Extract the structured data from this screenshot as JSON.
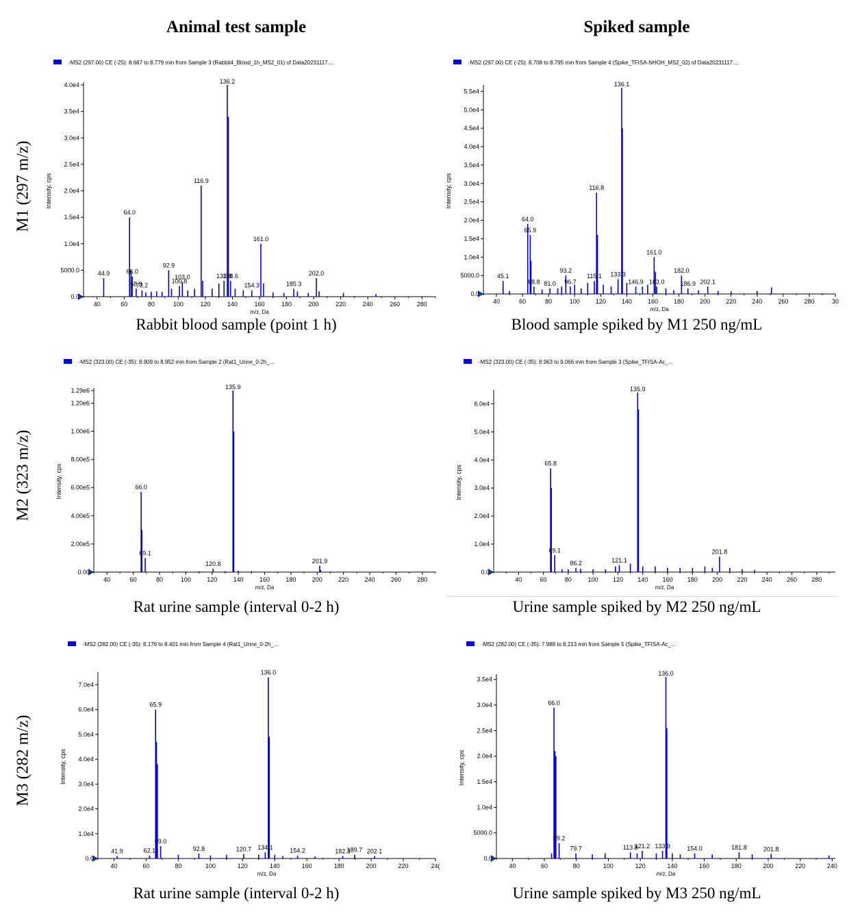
{
  "column_headers": [
    "Animal test sample",
    "Spiked sample"
  ],
  "row_headers": [
    "M1 (297 m/z)",
    "M2 (323 m/z)",
    "M3 (282 m/z)"
  ],
  "colors": {
    "spectrum": "#0000e0",
    "axis": "#000000",
    "background": "#ffffff"
  },
  "chart_data": [
    {
      "type": "bar",
      "legend": "-MS2 (297.00) CE (-25): 8.687 to 8.779 min from Sample 3 (Rabbit4_Blood_1h_MS2_01) of Data20231117....",
      "caption": "Rabbit blood sample (point 1 h)",
      "xlabel": "m/z, Da",
      "ylabel": "Intensity, cps",
      "xlim": [
        30,
        290
      ],
      "ylim": [
        0,
        40000
      ],
      "xticks": [
        40,
        60,
        80,
        100,
        120,
        140,
        160,
        180,
        200,
        220,
        240,
        260,
        280
      ],
      "yticks": [
        {
          "v": 0,
          "label": "0.0"
        },
        {
          "v": 5000,
          "label": "5000.0"
        },
        {
          "v": 10000,
          "label": "1.0e4"
        },
        {
          "v": 15000,
          "label": "1.5e4"
        },
        {
          "v": 20000,
          "label": "2.0e4"
        },
        {
          "v": 25000,
          "label": "2.5e4"
        },
        {
          "v": 30000,
          "label": "3.0e4"
        },
        {
          "v": 35000,
          "label": "3.5e4"
        },
        {
          "v": 40000,
          "label": "4.0e4"
        }
      ],
      "peaks": [
        [
          44.9,
          3500
        ],
        [
          64.0,
          15000
        ],
        [
          65.1,
          5000
        ],
        [
          66.0,
          3800
        ],
        [
          68.9,
          1500
        ],
        [
          73.2,
          1200
        ],
        [
          76,
          800
        ],
        [
          80,
          900
        ],
        [
          84,
          1000
        ],
        [
          88,
          900
        ],
        [
          92.9,
          5000
        ],
        [
          95,
          1500
        ],
        [
          100.8,
          2000
        ],
        [
          103.0,
          2800
        ],
        [
          107,
          1200
        ],
        [
          112,
          1500
        ],
        [
          116.9,
          21000
        ],
        [
          118,
          3000
        ],
        [
          125,
          1500
        ],
        [
          130,
          2500
        ],
        [
          133.8,
          3000
        ],
        [
          136.2,
          40000
        ],
        [
          137,
          34000
        ],
        [
          138.6,
          3000
        ],
        [
          142,
          1500
        ],
        [
          148,
          1200
        ],
        [
          154.3,
          1200
        ],
        [
          161.0,
          10000
        ],
        [
          163,
          2500
        ],
        [
          170,
          800
        ],
        [
          178,
          700
        ],
        [
          185.3,
          1500
        ],
        [
          188,
          1000
        ],
        [
          196,
          700
        ],
        [
          202.0,
          3500
        ],
        [
          204,
          1000
        ],
        [
          222,
          700
        ],
        [
          246,
          500
        ]
      ],
      "labels": [
        [
          44.9,
          "44.9"
        ],
        [
          64.0,
          "64.0"
        ],
        [
          66.0,
          "66.0"
        ],
        [
          68.9,
          "68.9"
        ],
        [
          73.2,
          "73.2"
        ],
        [
          92.9,
          "92.9"
        ],
        [
          100.8,
          "100.8"
        ],
        [
          103.0,
          "103.0"
        ],
        [
          116.9,
          "116.9"
        ],
        [
          133.8,
          "133.8"
        ],
        [
          136.2,
          "136.2"
        ],
        [
          138.6,
          "138.6"
        ],
        [
          154.3,
          "154.3"
        ],
        [
          161.0,
          "161.0"
        ],
        [
          185.3,
          "185.3"
        ],
        [
          202.0,
          "202.0"
        ]
      ]
    },
    {
      "type": "bar",
      "legend": "-MS2 (297.00) CE (-25): 8.708 to 8.795 min from Sample 4 (Spike_TFISA-NHOH_MS2_02) of Data20231117....",
      "caption": "Blood sample spiked by M1 250 ng/mL",
      "xlabel": "m/z, Da",
      "ylabel": "Intensity, cps",
      "xlim": [
        30,
        300
      ],
      "ylim": [
        0,
        56000
      ],
      "xticks": [
        40,
        60,
        80,
        100,
        120,
        140,
        160,
        180,
        200,
        220,
        240,
        260,
        280,
        300
      ],
      "yticks": [
        {
          "v": 0,
          "label": "0.0"
        },
        {
          "v": 5000,
          "label": "5000.0"
        },
        {
          "v": 10000,
          "label": "1.0e4"
        },
        {
          "v": 15000,
          "label": "1.5e4"
        },
        {
          "v": 20000,
          "label": "2.0e4"
        },
        {
          "v": 25000,
          "label": "2.5e4"
        },
        {
          "v": 30000,
          "label": "3.0e4"
        },
        {
          "v": 35000,
          "label": "3.5e4"
        },
        {
          "v": 40000,
          "label": "4.0e4"
        },
        {
          "v": 45000,
          "label": "4.5e4"
        },
        {
          "v": 50000,
          "label": "5.0e4"
        },
        {
          "v": 55000,
          "label": "5.5e4"
        }
      ],
      "peaks": [
        [
          45.1,
          3500
        ],
        [
          50,
          800
        ],
        [
          64.0,
          19000
        ],
        [
          65.9,
          16000
        ],
        [
          66.5,
          9000
        ],
        [
          68.8,
          2000
        ],
        [
          75,
          1200
        ],
        [
          81.0,
          1500
        ],
        [
          87,
          1500
        ],
        [
          90,
          2000
        ],
        [
          93.2,
          5000
        ],
        [
          96.7,
          2000
        ],
        [
          100,
          2500
        ],
        [
          105,
          1500
        ],
        [
          110,
          3000
        ],
        [
          115.1,
          3500
        ],
        [
          116.8,
          27500
        ],
        [
          117.5,
          16000
        ],
        [
          122,
          2500
        ],
        [
          128,
          2000
        ],
        [
          133.3,
          4000
        ],
        [
          136.1,
          56000
        ],
        [
          136.6,
          45000
        ],
        [
          140,
          3000
        ],
        [
          146.9,
          2000
        ],
        [
          152,
          2000
        ],
        [
          156,
          2500
        ],
        [
          161.0,
          10000
        ],
        [
          162,
          6000
        ],
        [
          163.0,
          2000
        ],
        [
          170,
          1500
        ],
        [
          176,
          1000
        ],
        [
          182.0,
          5000
        ],
        [
          186.9,
          1500
        ],
        [
          195,
          1000
        ],
        [
          202.1,
          2000
        ],
        [
          210,
          800
        ],
        [
          220,
          700
        ],
        [
          240,
          800
        ],
        [
          251,
          1800
        ]
      ],
      "labels": [
        [
          45.1,
          "45.1"
        ],
        [
          64.0,
          "64.0"
        ],
        [
          65.9,
          "65.9"
        ],
        [
          68.8,
          "68.8"
        ],
        [
          81.0,
          "81.0"
        ],
        [
          93.2,
          "93.2"
        ],
        [
          96.7,
          "96.7"
        ],
        [
          115.1,
          "115.1"
        ],
        [
          116.8,
          "116.8"
        ],
        [
          133.3,
          "133.3"
        ],
        [
          136.1,
          "136.1"
        ],
        [
          146.9,
          "146.9"
        ],
        [
          161.0,
          "161.0"
        ],
        [
          163.0,
          "163.0"
        ],
        [
          182.0,
          "182.0"
        ],
        [
          186.9,
          "186.9"
        ],
        [
          202.1,
          "202.1"
        ]
      ],
      "xtick_labels_override": {
        "300": "30"
      }
    },
    {
      "type": "bar",
      "legend": "-MS2 (323.00) CE (-35): 8.909 to 8.952 min from Sample 2 (Rat1_Urine_0-2h_...",
      "caption": "Rat urine sample (interval 0-2 h)",
      "xlabel": "m/z, Da",
      "ylabel": "Intensity, cps",
      "xlim": [
        30,
        290
      ],
      "ylim": [
        0,
        1290000
      ],
      "xticks": [
        40,
        60,
        80,
        100,
        120,
        140,
        160,
        180,
        200,
        220,
        240,
        260,
        280
      ],
      "yticks": [
        {
          "v": 0,
          "label": "0.00"
        },
        {
          "v": 200000,
          "label": "2.00e5"
        },
        {
          "v": 400000,
          "label": "4.00e5"
        },
        {
          "v": 600000,
          "label": "6.00e5"
        },
        {
          "v": 800000,
          "label": "8.00e5"
        },
        {
          "v": 1000000,
          "label": "1.00e6"
        },
        {
          "v": 1200000,
          "label": "1.20e6"
        },
        {
          "v": 1290000,
          "label": "1.29e6"
        }
      ],
      "peaks": [
        [
          66.0,
          570000
        ],
        [
          66.6,
          300000
        ],
        [
          69.1,
          100000
        ],
        [
          100,
          4000
        ],
        [
          110,
          5000
        ],
        [
          120.8,
          25000
        ],
        [
          130,
          6000
        ],
        [
          135.9,
          1290000
        ],
        [
          136.5,
          1000000
        ],
        [
          140,
          10000
        ],
        [
          150,
          6000
        ],
        [
          201.9,
          45000
        ],
        [
          202.5,
          15000
        ]
      ],
      "labels": [
        [
          66.0,
          "66.0"
        ],
        [
          69.1,
          "69.1"
        ],
        [
          120.8,
          "120.8"
        ],
        [
          135.9,
          "135.9"
        ],
        [
          201.9,
          "201.9"
        ]
      ]
    },
    {
      "type": "bar",
      "legend": "-MS2 (323.00) CE (-35): 8.963 to 9.066 min from Sample 3 (Spike_TFISA-Ac_...",
      "caption": "Urine sample spiked by M2 250 ng/mL",
      "xlabel": "m/z, Da",
      "ylabel": "Intensity, cps",
      "xlim": [
        20,
        295
      ],
      "ylim": [
        0,
        64000
      ],
      "xticks": [
        40,
        60,
        80,
        100,
        120,
        140,
        160,
        180,
        200,
        220,
        240,
        260,
        280
      ],
      "yticks": [
        {
          "v": 0,
          "label": "0.0"
        },
        {
          "v": 10000,
          "label": "1.0e4"
        },
        {
          "v": 20000,
          "label": "2.0e4"
        },
        {
          "v": 30000,
          "label": "3.0e4"
        },
        {
          "v": 40000,
          "label": "4.0e4"
        },
        {
          "v": 50000,
          "label": "5.0e4"
        },
        {
          "v": 60000,
          "label": "6.0e4"
        }
      ],
      "peaks": [
        [
          65.8,
          37000
        ],
        [
          66.4,
          30000
        ],
        [
          69.1,
          6000
        ],
        [
          75,
          1000
        ],
        [
          80,
          1000
        ],
        [
          86.2,
          1500
        ],
        [
          90,
          1200
        ],
        [
          100,
          1000
        ],
        [
          110,
          1000
        ],
        [
          118,
          2000
        ],
        [
          121.1,
          2500
        ],
        [
          130,
          3000
        ],
        [
          135.9,
          64000
        ],
        [
          136.5,
          58000
        ],
        [
          140,
          2000
        ],
        [
          150,
          2000
        ],
        [
          160,
          1500
        ],
        [
          170,
          1500
        ],
        [
          180,
          1500
        ],
        [
          190,
          2000
        ],
        [
          196,
          1500
        ],
        [
          201.8,
          5500
        ],
        [
          210,
          1500
        ],
        [
          220,
          1000
        ],
        [
          230,
          800
        ]
      ],
      "labels": [
        [
          65.8,
          "65.8"
        ],
        [
          69.1,
          "69.1"
        ],
        [
          86.2,
          "86.2"
        ],
        [
          121.1,
          "121.1"
        ],
        [
          135.9,
          "135.9"
        ],
        [
          201.8,
          "201.8"
        ]
      ]
    },
    {
      "type": "bar",
      "legend": "-MS2 (282.00) CE (-35): 8.176 to 8.401 min from Sample 4 (Rat1_Urine_0-2h_...",
      "caption": "Rat urine sample (interval 0-2 h)",
      "xlabel": "m/z, Da",
      "ylabel": "Intensity, cps",
      "xlim": [
        30,
        240
      ],
      "ylim": [
        0,
        74000
      ],
      "xticks": [
        40,
        60,
        80,
        100,
        120,
        140,
        160,
        180,
        200,
        220,
        240
      ],
      "yticks": [
        {
          "v": 0,
          "label": "0.0"
        },
        {
          "v": 10000,
          "label": "1.0e4"
        },
        {
          "v": 20000,
          "label": "2.0e4"
        },
        {
          "v": 30000,
          "label": "3.0e4"
        },
        {
          "v": 40000,
          "label": "4.0e4"
        },
        {
          "v": 50000,
          "label": "5.0e4"
        },
        {
          "v": 60000,
          "label": "6.0e4"
        },
        {
          "v": 70000,
          "label": "7.0e4"
        }
      ],
      "peaks": [
        [
          41.9,
          1000
        ],
        [
          62.1,
          1200
        ],
        [
          65.9,
          60000
        ],
        [
          66.4,
          47000
        ],
        [
          67,
          38000
        ],
        [
          69.0,
          5000
        ],
        [
          80,
          1500
        ],
        [
          92.8,
          2000
        ],
        [
          100,
          1200
        ],
        [
          110,
          1500
        ],
        [
          120.7,
          1800
        ],
        [
          130,
          1500
        ],
        [
          134.1,
          2500
        ],
        [
          136.0,
          73000
        ],
        [
          136.6,
          49000
        ],
        [
          140,
          1500
        ],
        [
          145,
          1000
        ],
        [
          154.2,
          1200
        ],
        [
          165,
          800
        ],
        [
          182.3,
          1000
        ],
        [
          189.7,
          1500
        ],
        [
          202.1,
          1000
        ]
      ],
      "labels": [
        [
          41.9,
          "41.9"
        ],
        [
          62.1,
          "62.1"
        ],
        [
          65.9,
          "65.9"
        ],
        [
          69.0,
          "69.0"
        ],
        [
          92.8,
          "92.8"
        ],
        [
          120.7,
          "120.7"
        ],
        [
          134.1,
          "134.1"
        ],
        [
          136.0,
          "136.0"
        ],
        [
          154.2,
          "154.2"
        ],
        [
          182.3,
          "182.3"
        ],
        [
          189.7,
          "189.7"
        ],
        [
          202.1,
          "202.1"
        ]
      ],
      "xtick_labels_override": {
        "240": "24("
      }
    },
    {
      "type": "bar",
      "legend": "-MS2 (282.00) CE (-35): 7.988 to 8.213 min from Sample 5 (Spike_TFISA-Ac_...",
      "caption": "Urine sample spiked by M3 250 ng/mL",
      "xlabel": "m/z, Da",
      "ylabel": "Intensity, cps",
      "xlim": [
        30,
        242
      ],
      "ylim": [
        0,
        35500
      ],
      "xticks": [
        40,
        60,
        80,
        100,
        120,
        140,
        160,
        180,
        200,
        220,
        240
      ],
      "yticks": [
        {
          "v": 0,
          "label": "0.0"
        },
        {
          "v": 5000,
          "label": "5000.0"
        },
        {
          "v": 10000,
          "label": "1.0e4"
        },
        {
          "v": 15000,
          "label": "1.5e4"
        },
        {
          "v": 20000,
          "label": "2.0e4"
        },
        {
          "v": 25000,
          "label": "2.5e4"
        },
        {
          "v": 30000,
          "label": "3.0e4"
        },
        {
          "v": 35000,
          "label": "3.5e4"
        }
      ],
      "peaks": [
        [
          64.5,
          1000
        ],
        [
          66.0,
          29500
        ],
        [
          66.6,
          21000
        ],
        [
          67.2,
          20000
        ],
        [
          69.2,
          3000
        ],
        [
          79.7,
          1000
        ],
        [
          90,
          800
        ],
        [
          98,
          1000
        ],
        [
          113.8,
          1200
        ],
        [
          118,
          1000
        ],
        [
          121.2,
          1500
        ],
        [
          130,
          1000
        ],
        [
          133.9,
          1500
        ],
        [
          136.0,
          35500
        ],
        [
          136.6,
          25500
        ],
        [
          140,
          1000
        ],
        [
          145,
          800
        ],
        [
          154.0,
          1000
        ],
        [
          165,
          800
        ],
        [
          181.8,
          1200
        ],
        [
          190,
          800
        ],
        [
          201.8,
          900
        ],
        [
          238,
          600
        ]
      ],
      "labels": [
        [
          66.0,
          "66.0"
        ],
        [
          69.2,
          "69.2"
        ],
        [
          79.7,
          "79.7"
        ],
        [
          113.8,
          "113.8"
        ],
        [
          121.2,
          "121.2"
        ],
        [
          133.9,
          "133.9"
        ],
        [
          136.0,
          "136.0"
        ],
        [
          154.0,
          "154.0"
        ],
        [
          181.8,
          "181.8"
        ],
        [
          201.8,
          "201.8"
        ]
      ]
    }
  ]
}
